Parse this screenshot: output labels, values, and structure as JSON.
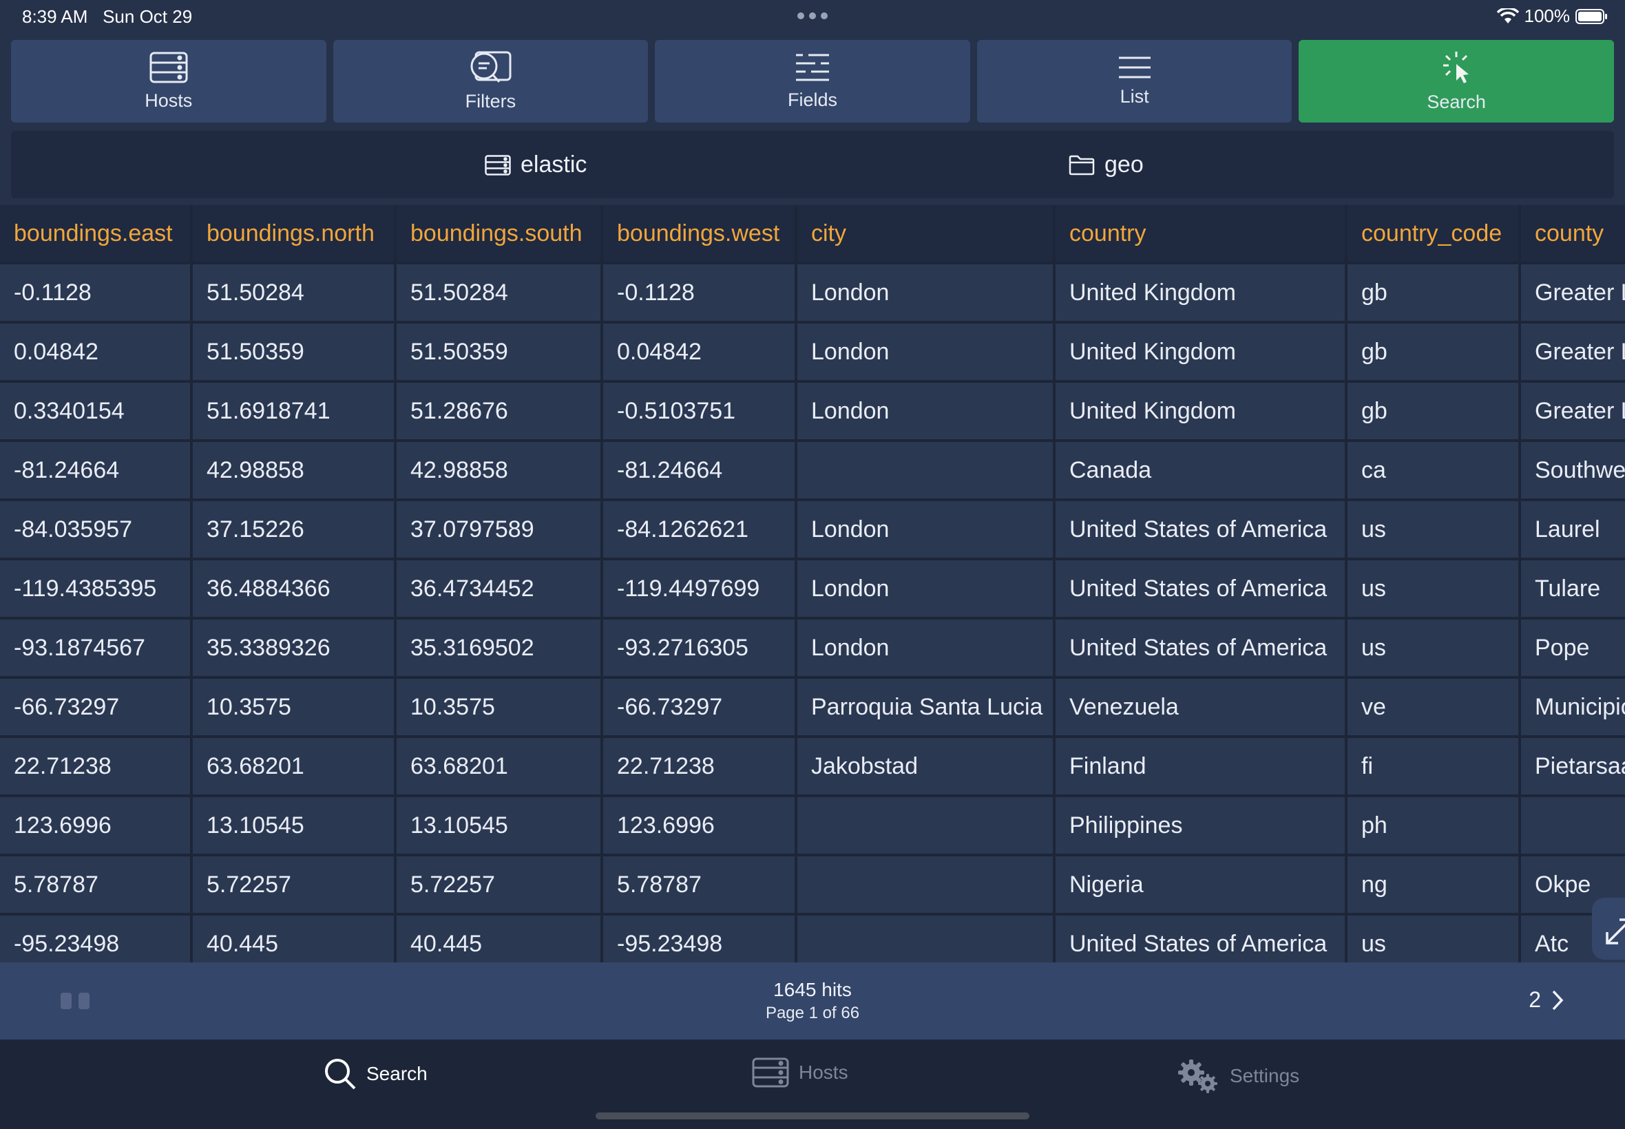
{
  "status_bar": {
    "time": "8:39 AM",
    "date": "Sun Oct 29",
    "battery": "100%"
  },
  "toolbar": [
    {
      "label": "Hosts",
      "icon": "server-icon",
      "active": false
    },
    {
      "label": "Filters",
      "icon": "filter-search-icon",
      "active": false
    },
    {
      "label": "Fields",
      "icon": "fields-icon",
      "active": false
    },
    {
      "label": "List",
      "icon": "list-icon",
      "active": false
    },
    {
      "label": "Search",
      "icon": "cursor-click-icon",
      "active": true
    }
  ],
  "index_bar": {
    "host": "elastic",
    "index": "geo"
  },
  "table": {
    "columns": [
      "boundings.east",
      "boundings.north",
      "boundings.south",
      "boundings.west",
      "city",
      "country",
      "country_code",
      "county"
    ],
    "rows": [
      [
        "-0.1128",
        "51.50284",
        "51.50284",
        "-0.1128",
        "London",
        "United Kingdom",
        "gb",
        "Greater L"
      ],
      [
        "0.04842",
        "51.50359",
        "51.50359",
        "0.04842",
        "London",
        "United Kingdom",
        "gb",
        "Greater L"
      ],
      [
        "0.3340154",
        "51.6918741",
        "51.28676",
        "-0.5103751",
        "London",
        "United Kingdom",
        "gb",
        "Greater L"
      ],
      [
        "-81.24664",
        "42.98858",
        "42.98858",
        "-81.24664",
        "",
        "Canada",
        "ca",
        "Southwe"
      ],
      [
        "-84.035957",
        "37.15226",
        "37.0797589",
        "-84.1262621",
        "London",
        "United States of America",
        "us",
        "Laurel"
      ],
      [
        "-119.4385395",
        "36.4884366",
        "36.4734452",
        "-119.4497699",
        "London",
        "United States of America",
        "us",
        "Tulare"
      ],
      [
        "-93.1874567",
        "35.3389326",
        "35.3169502",
        "-93.2716305",
        "London",
        "United States of America",
        "us",
        "Pope"
      ],
      [
        "-66.73297",
        "10.3575",
        "10.3575",
        "-66.73297",
        "Parroquia Santa Lucia",
        "Venezuela",
        "ve",
        "Municipio"
      ],
      [
        "22.71238",
        "63.68201",
        "63.68201",
        "22.71238",
        "Jakobstad",
        "Finland",
        "fi",
        "Pietarsaa"
      ],
      [
        "123.6996",
        "13.10545",
        "13.10545",
        "123.6996",
        "",
        "Philippines",
        "ph",
        ""
      ],
      [
        "5.78787",
        "5.72257",
        "5.72257",
        "5.78787",
        "",
        "Nigeria",
        "ng",
        "Okpe"
      ],
      [
        "-95.23498",
        "40.445",
        "40.445",
        "-95.23498",
        "",
        "United States of America",
        "us",
        "Atc"
      ]
    ]
  },
  "pager": {
    "hits": "1645 hits",
    "page": "Page 1 of 66",
    "next_page": "2"
  },
  "tabbar": [
    {
      "label": "Search",
      "icon": "magnifier-icon",
      "active": true
    },
    {
      "label": "Hosts",
      "icon": "server-icon",
      "active": false
    },
    {
      "label": "Settings",
      "icon": "gears-icon",
      "active": false
    }
  ],
  "colors": {
    "background": "#26324a",
    "header_text": "#f1a63b",
    "active_button": "#2e9b5a",
    "panel": "#34466a",
    "tab_inactive": "#7d8799"
  }
}
